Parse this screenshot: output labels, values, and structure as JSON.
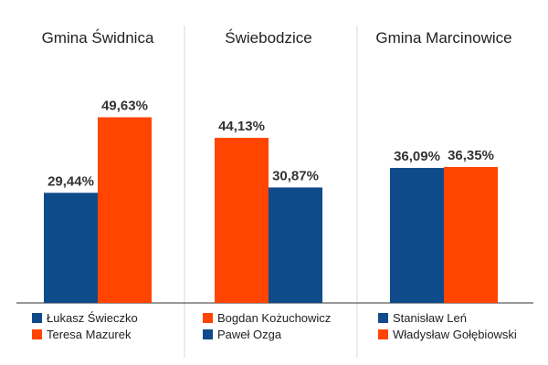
{
  "chart_data": {
    "type": "bar",
    "ylim": [
      0,
      60
    ],
    "grid": false,
    "legend_position": "bottom",
    "colors": {
      "blue": "#0f4b8a",
      "orange": "#ff4500",
      "divider": "#d9d9d9",
      "baseline": "#333333"
    },
    "panels": [
      {
        "title": "Gmina Świdnica",
        "bars": [
          {
            "name": "Łukasz Świeczko",
            "value": 29.44,
            "label": "29,44%",
            "color": "#0f4b8a"
          },
          {
            "name": "Teresa Mazurek",
            "value": 49.63,
            "label": "49,63%",
            "color": "#ff4500"
          }
        ]
      },
      {
        "title": "Świebodzice",
        "bars": [
          {
            "name": "Bogdan Kożuchowicz",
            "value": 44.13,
            "label": "44,13%",
            "color": "#ff4500"
          },
          {
            "name": "Paweł Ozga",
            "value": 30.87,
            "label": "30,87%",
            "color": "#0f4b8a"
          }
        ]
      },
      {
        "title": "Gmina Marcinowice",
        "bars": [
          {
            "name": "Stanisław Leń",
            "value": 36.09,
            "label": "36,09%",
            "color": "#0f4b8a"
          },
          {
            "name": "Władysław Gołębiowski",
            "value": 36.35,
            "label": "36,35%",
            "color": "#ff4500"
          }
        ]
      }
    ]
  }
}
